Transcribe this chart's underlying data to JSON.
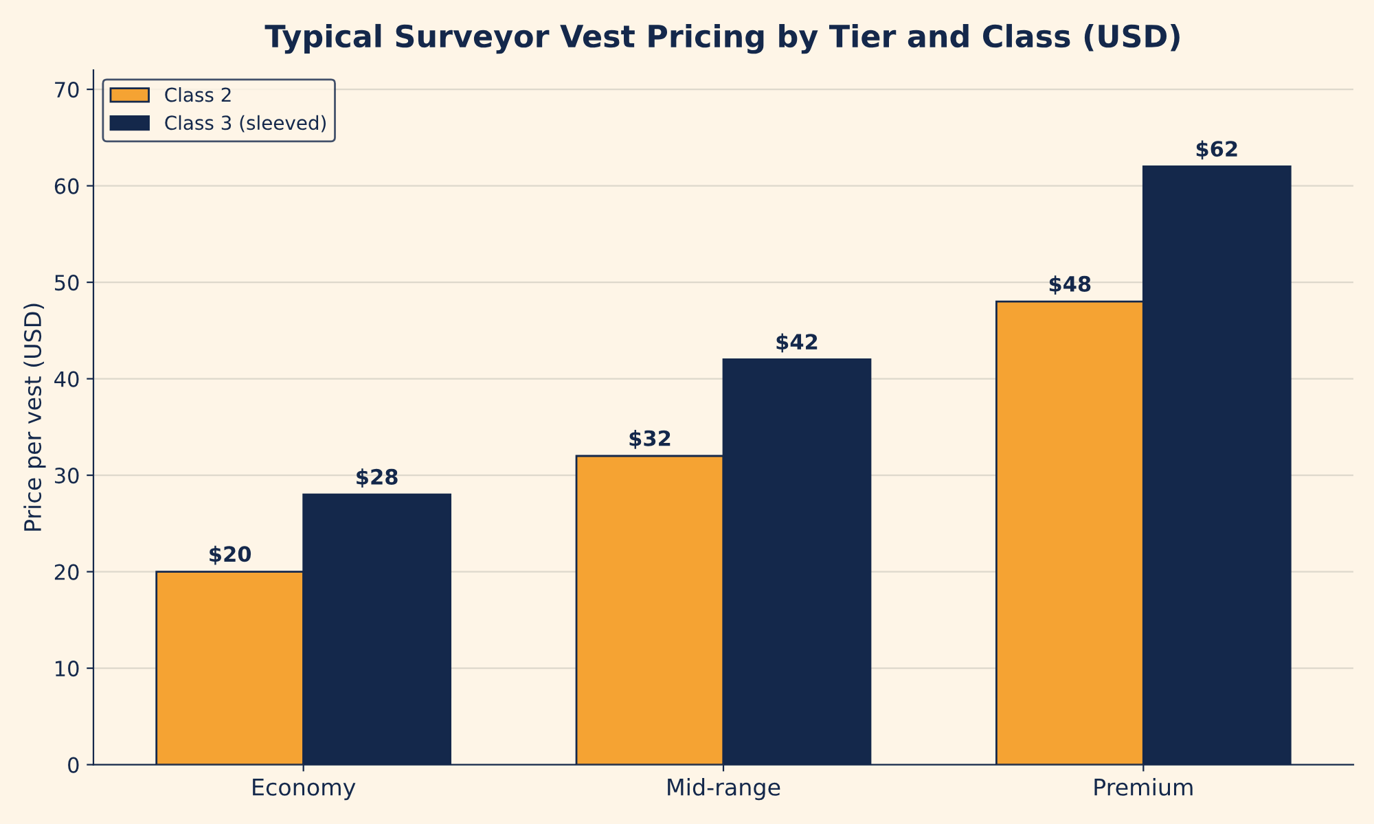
{
  "chart_data": {
    "type": "bar",
    "title": "Typical Surveyor Vest Pricing by Tier and Class (USD)",
    "ylabel": "Price per vest (USD)",
    "categories": [
      "Economy",
      "Mid-range",
      "Premium"
    ],
    "series": [
      {
        "name": "Class 2",
        "color": "#f5a333",
        "values": [
          20,
          32,
          48
        ],
        "value_labels": [
          "$20",
          "$32",
          "$48"
        ]
      },
      {
        "name": "Class 3 (sleeved)",
        "color": "#14284b",
        "values": [
          28,
          42,
          62
        ],
        "value_labels": [
          "$28",
          "$42",
          "$62"
        ]
      }
    ],
    "ylim": [
      0,
      72
    ],
    "yticks": [
      0,
      10,
      20,
      30,
      40,
      50,
      60,
      70
    ],
    "grid": "y",
    "legend": "top left"
  }
}
